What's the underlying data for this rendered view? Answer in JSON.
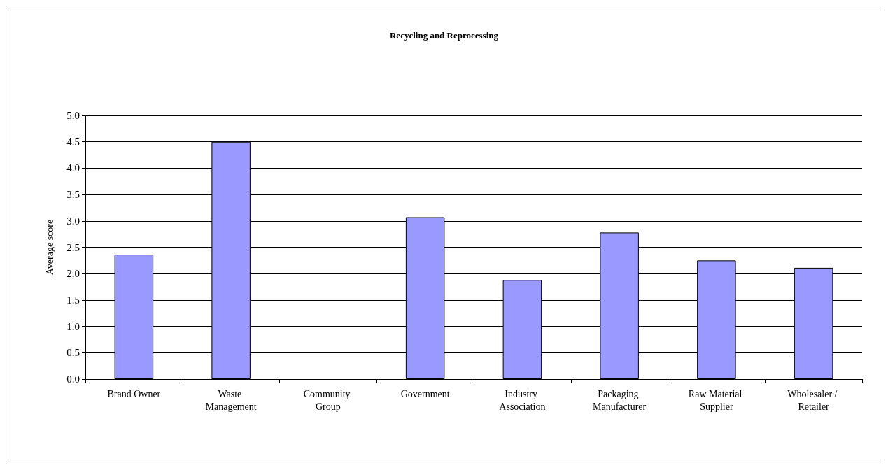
{
  "chart_data": {
    "type": "bar",
    "title": "Recycling and Reprocessing",
    "ylabel": "Average score",
    "categories": [
      "Brand Owner",
      "Waste Management",
      "Community Group",
      "Government",
      "Industry Association",
      "Packaging Manufacturer",
      "Raw Material Supplier",
      "Wholesaler / Retailer"
    ],
    "values": [
      2.36,
      4.5,
      null,
      3.07,
      1.88,
      2.78,
      2.25,
      2.11
    ],
    "color": "#9999ff",
    "ylim": [
      0,
      5
    ],
    "yticks": [
      {
        "value": 0,
        "label": "0.0"
      },
      {
        "value": 0.5,
        "label": "0.5"
      },
      {
        "value": 1,
        "label": "1.0"
      },
      {
        "value": 1.5,
        "label": "1.5"
      },
      {
        "value": 2,
        "label": "2.0"
      },
      {
        "value": 2.5,
        "label": "2.5"
      },
      {
        "value": 3,
        "label": "3.0"
      },
      {
        "value": 3.5,
        "label": "3.5"
      },
      {
        "value": 4,
        "label": "4.0"
      },
      {
        "value": 4.5,
        "label": "4.5"
      },
      {
        "value": 5,
        "label": "5.0"
      }
    ],
    "grid": "y"
  }
}
